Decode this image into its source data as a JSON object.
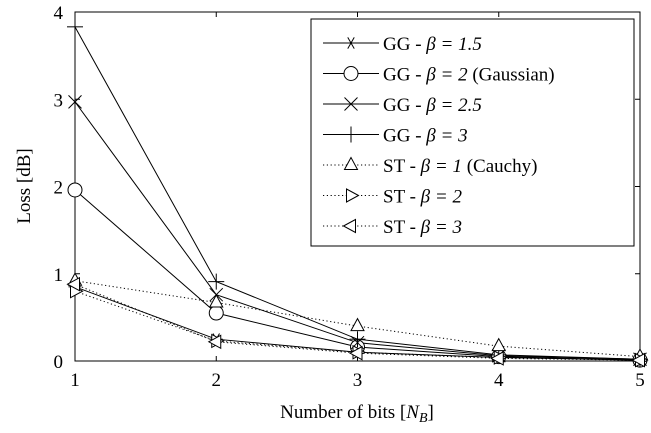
{
  "chart_data": {
    "type": "line",
    "title": "",
    "xlabel": "Number of bits [N_B]",
    "ylabel": "Loss [dB]",
    "xlim": [
      1,
      5
    ],
    "ylim": [
      0,
      4
    ],
    "x": [
      1,
      2,
      3,
      4,
      5
    ],
    "x_ticks": [
      "1",
      "2",
      "3",
      "4",
      "5"
    ],
    "y_ticks": [
      "0",
      "1",
      "2",
      "3",
      "4"
    ],
    "grid": false,
    "legend_position": "top-right",
    "series": [
      {
        "name": "GG - β = 1.5",
        "label_prefix": "GG - ",
        "label_math": "β = 1.5",
        "label_suffix": "",
        "marker": "asterisk",
        "line": "solid",
        "values": [
          0.85,
          0.25,
          0.1,
          0.04,
          0.01
        ]
      },
      {
        "name": "GG - β = 2 (Gaussian)",
        "label_prefix": "GG - ",
        "label_math": "β = 2",
        "label_suffix": " (Gaussian)",
        "marker": "circle",
        "line": "solid",
        "values": [
          1.96,
          0.55,
          0.16,
          0.05,
          0.01
        ]
      },
      {
        "name": "GG - β = 2.5",
        "label_prefix": "GG - ",
        "label_math": "β = 2.5",
        "label_suffix": "",
        "marker": "x",
        "line": "solid",
        "values": [
          2.97,
          0.76,
          0.21,
          0.06,
          0.02
        ]
      },
      {
        "name": "GG - β = 3",
        "label_prefix": "GG - ",
        "label_math": "β = 3",
        "label_suffix": "",
        "marker": "plus",
        "line": "solid",
        "values": [
          3.83,
          0.91,
          0.25,
          0.07,
          0.02
        ]
      },
      {
        "name": "ST - β = 1 (Cauchy)",
        "label_prefix": "ST - ",
        "label_math": "β = 1",
        "label_suffix": "  (Cauchy)",
        "marker": "triangle-up",
        "line": "dotted",
        "values": [
          0.92,
          0.67,
          0.4,
          0.17,
          0.05
        ]
      },
      {
        "name": "ST - β = 2",
        "label_prefix": "ST - ",
        "label_math": "β = 2",
        "label_suffix": "",
        "marker": "triangle-right",
        "line": "dotted",
        "values": [
          0.8,
          0.23,
          0.1,
          0.04,
          0.01
        ]
      },
      {
        "name": "ST - β = 3",
        "label_prefix": "ST - ",
        "label_math": "β = 3",
        "label_suffix": "",
        "marker": "triangle-left",
        "line": "dotted",
        "values": [
          0.88,
          0.22,
          0.09,
          0.03,
          0.01
        ]
      }
    ]
  }
}
